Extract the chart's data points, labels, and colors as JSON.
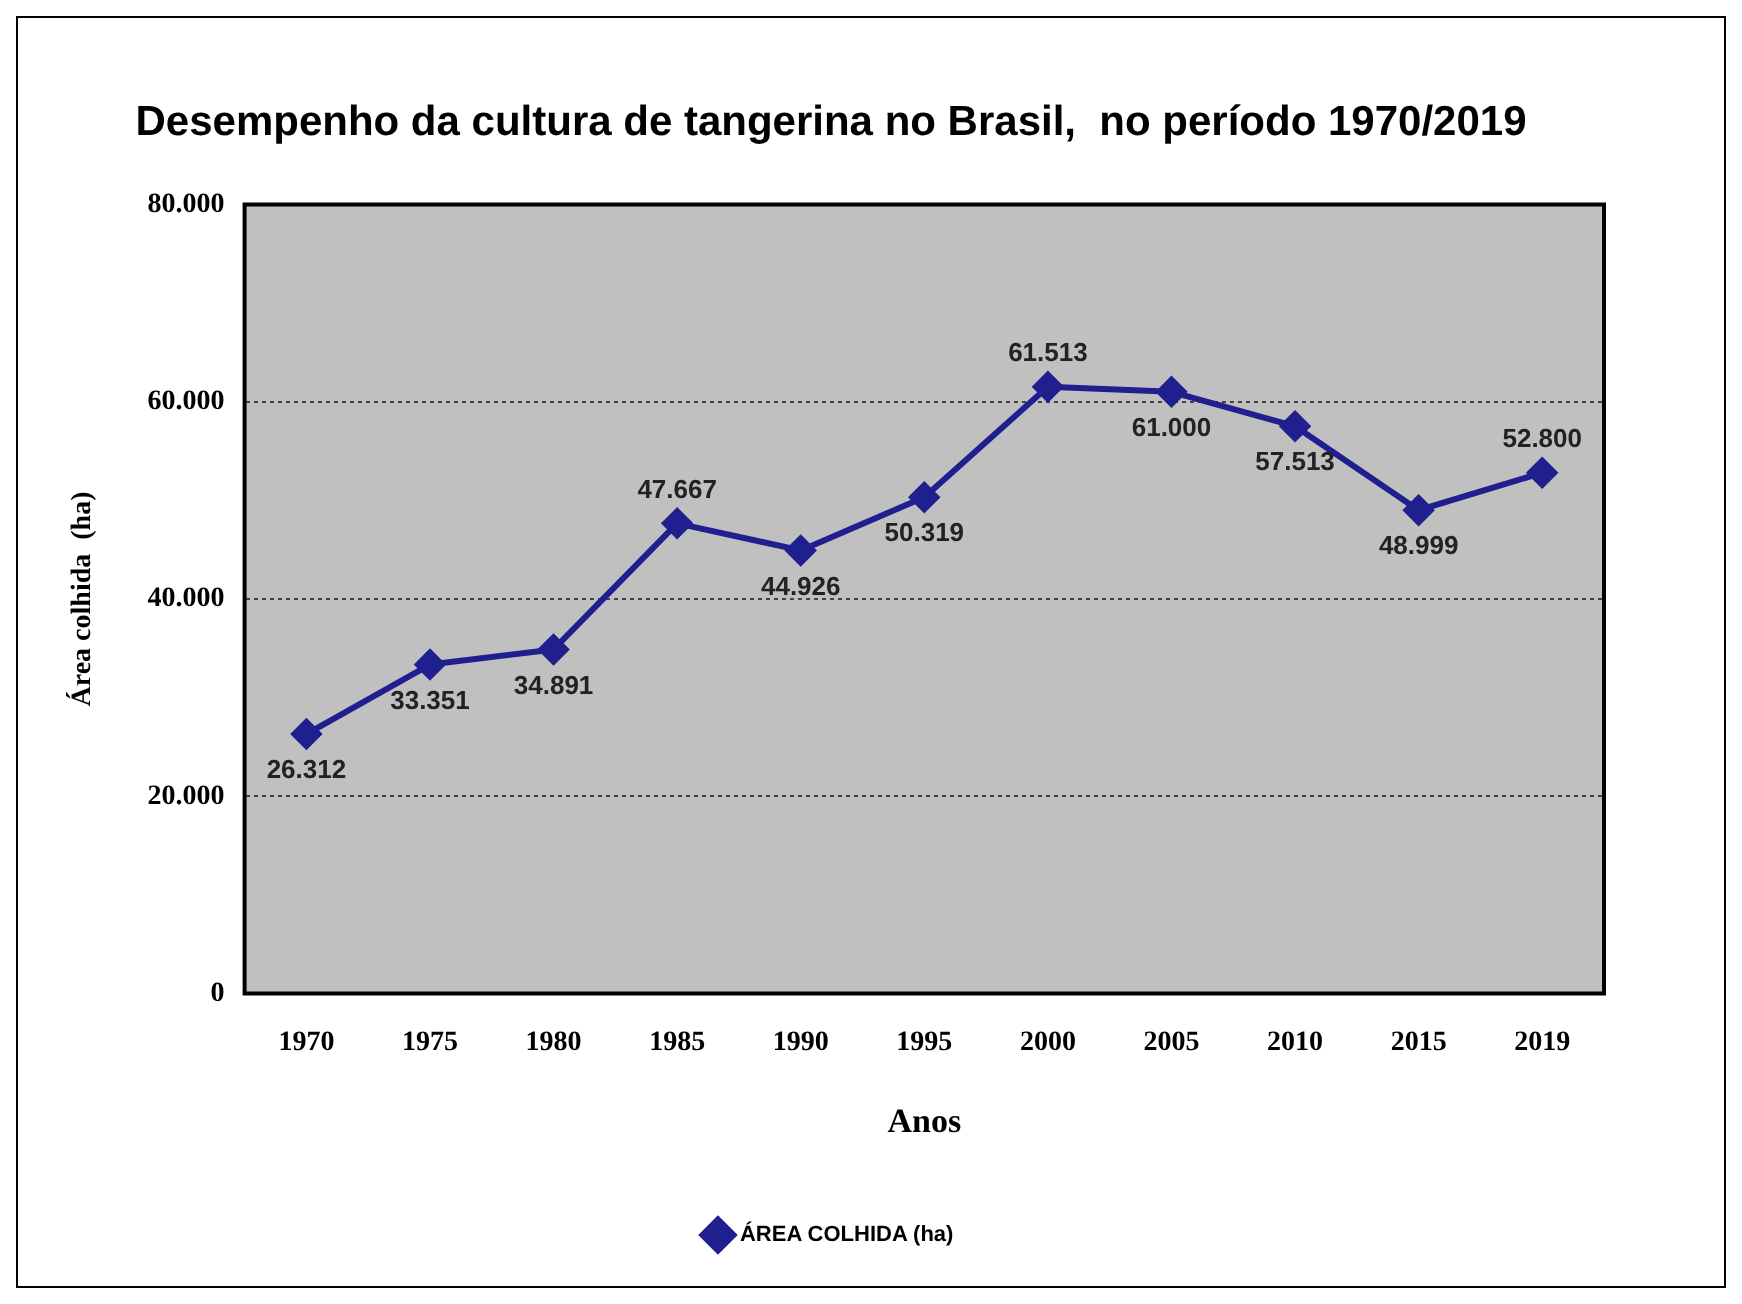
{
  "chart_data": {
    "type": "line",
    "title": "Desempenho da cultura de tangerina no Brasil,  no período 1970/2019",
    "xlabel": "Anos",
    "ylabel": "Área colhida  (ha)",
    "categories": [
      "1970",
      "1975",
      "1980",
      "1985",
      "1990",
      "1995",
      "2000",
      "2005",
      "2010",
      "2015",
      "2019"
    ],
    "series": [
      {
        "name": "ÁREA COLHIDA (ha)",
        "color": "#1f1f8f",
        "values": [
          26312,
          33351,
          34891,
          47667,
          44926,
          50319,
          61513,
          61000,
          57513,
          48999,
          52800
        ],
        "value_labels": [
          "26.312",
          "33.351",
          "34.891",
          "47.667",
          "44.926",
          "50.319",
          "61.513",
          "61.000",
          "57.513",
          "48.999",
          "52.800"
        ]
      }
    ],
    "ylim": [
      0,
      80000
    ],
    "yticks": [
      {
        "value": 0,
        "label": "0"
      },
      {
        "value": 20000,
        "label": "20.000"
      },
      {
        "value": 40000,
        "label": "40.000"
      },
      {
        "value": 60000,
        "label": "60.000"
      },
      {
        "value": 80000,
        "label": "80.000"
      }
    ],
    "grid": "y",
    "legend": "bottom",
    "marker": "diamond",
    "line_style": "solid"
  }
}
